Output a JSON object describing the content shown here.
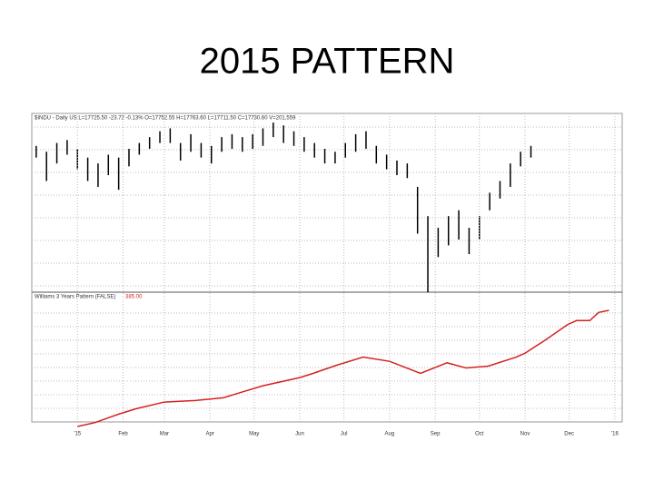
{
  "slide_title": "2015 PATTERN",
  "chart_data": [
    {
      "type": "hilo",
      "title": "$INDU - Daily US L=17725.50 -23.72 -0.13% O=17752.55 H=17763.60 L=17711.50 C=17730.60 V=201,559",
      "color": "#000000",
      "xlim": [
        -31,
        370
      ],
      "x": [
        -28,
        -21,
        -14,
        -7,
        0,
        7,
        14,
        21,
        28,
        35,
        42,
        49,
        56,
        63,
        70,
        77,
        84,
        91,
        98,
        105,
        112,
        119,
        126,
        133,
        140,
        147,
        154,
        161,
        168,
        175,
        182,
        189,
        196,
        203,
        210,
        217,
        224,
        231,
        238,
        245,
        252,
        259,
        266,
        273,
        280,
        287,
        294,
        301,
        308
      ],
      "high": [
        17900,
        17800,
        17950,
        18000,
        17850,
        17700,
        17600,
        17750,
        17700,
        17850,
        17950,
        18050,
        18150,
        18200,
        17950,
        18100,
        17950,
        17900,
        18050,
        18100,
        18050,
        18100,
        18200,
        18300,
        18250,
        18150,
        18050,
        17950,
        17850,
        17800,
        17950,
        18100,
        18150,
        17900,
        17750,
        17650,
        17600,
        17200,
        16700,
        16500,
        16700,
        16800,
        16500,
        16700,
        17100,
        17300,
        17600,
        17800,
        17900
      ],
      "low": [
        17700,
        17300,
        17600,
        17750,
        17500,
        17300,
        17200,
        17400,
        17150,
        17550,
        17750,
        17850,
        17950,
        17950,
        17650,
        17800,
        17700,
        17600,
        17800,
        17850,
        17800,
        17850,
        17900,
        18050,
        17950,
        17900,
        17800,
        17700,
        17600,
        17600,
        17700,
        17800,
        17850,
        17600,
        17500,
        17400,
        17350,
        16400,
        15400,
        16000,
        16200,
        16300,
        16050,
        16300,
        16800,
        17000,
        17200,
        17550,
        17700
      ]
    },
    {
      "type": "line",
      "title": "Williams 3 Years Pattern (FALSE)",
      "color": "#d62020",
      "xlim": [
        -31,
        370
      ],
      "xticks": [
        {
          "value": 0,
          "label": "'15"
        },
        {
          "value": 31,
          "label": "Feb"
        },
        {
          "value": 59,
          "label": "Mar"
        },
        {
          "value": 90,
          "label": "Apr"
        },
        {
          "value": 120,
          "label": "May"
        },
        {
          "value": 151,
          "label": "Jun"
        },
        {
          "value": 181,
          "label": "Jul"
        },
        {
          "value": 212,
          "label": "Aug"
        },
        {
          "value": 243,
          "label": "Sep"
        },
        {
          "value": 273,
          "label": "Oct"
        },
        {
          "value": 304,
          "label": "Nov"
        },
        {
          "value": 334,
          "label": "Dec"
        },
        {
          "value": 365,
          "label": "'16"
        }
      ],
      "x": [
        0,
        12,
        28,
        40,
        59,
        80,
        99,
        111,
        126,
        151,
        160,
        176,
        194,
        212,
        233,
        251,
        264,
        279,
        298,
        304,
        317,
        333,
        339,
        348,
        354,
        361
      ],
      "values": [
        0,
        13,
        41,
        59,
        81,
        86,
        95,
        113,
        135,
        162,
        176,
        203,
        230,
        216,
        176,
        211,
        194,
        200,
        230,
        243,
        284,
        338,
        351,
        351,
        378,
        385
      ],
      "value_labels": [
        null,
        null,
        null,
        null,
        null,
        null,
        null,
        null,
        null,
        null,
        null,
        null,
        null,
        null,
        null,
        null,
        null,
        null,
        null,
        null,
        null,
        null,
        null,
        null,
        null,
        "385.00"
      ]
    }
  ]
}
